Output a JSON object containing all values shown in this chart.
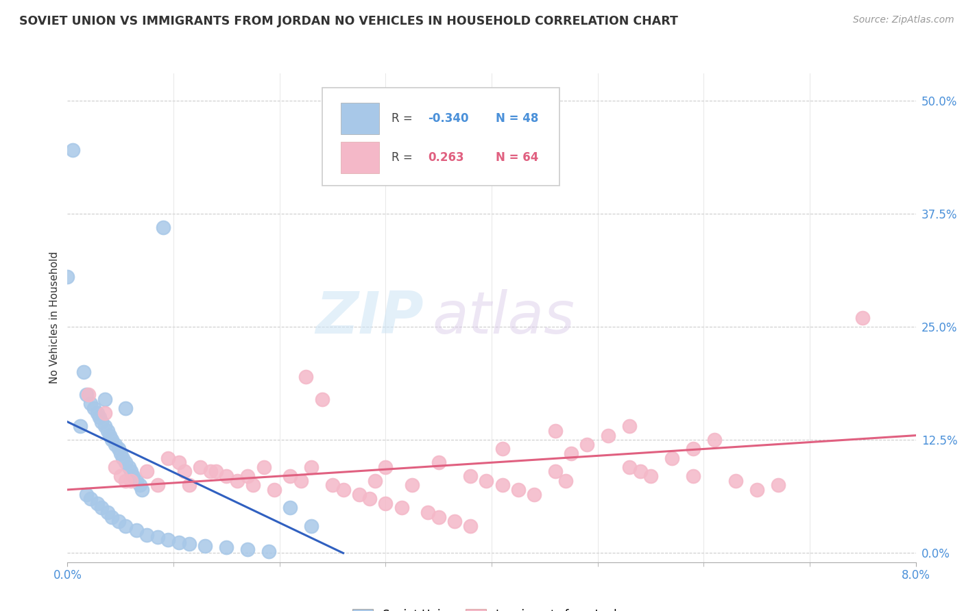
{
  "title": "SOVIET UNION VS IMMIGRANTS FROM JORDAN NO VEHICLES IN HOUSEHOLD CORRELATION CHART",
  "source": "Source: ZipAtlas.com",
  "ylabel": "No Vehicles in Household",
  "ytick_vals": [
    0.0,
    12.5,
    25.0,
    37.5,
    50.0
  ],
  "xlim": [
    0.0,
    8.0
  ],
  "ylim": [
    -1.0,
    53.0
  ],
  "color_blue": "#a8c8e8",
  "color_pink": "#f4b8c8",
  "color_blue_line": "#3060c0",
  "color_pink_line": "#e06080",
  "watermark_zip": "ZIP",
  "watermark_atlas": "atlas",
  "soviet_x": [
    0.05,
    0.9,
    0.0,
    0.15,
    0.18,
    0.22,
    0.25,
    0.28,
    0.3,
    0.32,
    0.35,
    0.38,
    0.4,
    0.42,
    0.45,
    0.48,
    0.5,
    0.52,
    0.55,
    0.58,
    0.6,
    0.62,
    0.65,
    0.68,
    0.7,
    0.18,
    0.22,
    0.28,
    0.32,
    0.38,
    0.42,
    0.48,
    0.55,
    0.65,
    0.75,
    0.85,
    0.95,
    1.05,
    1.15,
    1.3,
    1.5,
    1.7,
    1.9,
    2.1,
    2.3,
    0.12,
    0.35,
    0.55
  ],
  "soviet_y": [
    44.5,
    36.0,
    30.5,
    20.0,
    17.5,
    16.5,
    16.0,
    15.5,
    15.0,
    14.5,
    14.0,
    13.5,
    13.0,
    12.5,
    12.0,
    11.5,
    11.0,
    10.5,
    10.0,
    9.5,
    9.0,
    8.5,
    8.0,
    7.5,
    7.0,
    6.5,
    6.0,
    5.5,
    5.0,
    4.5,
    4.0,
    3.5,
    3.0,
    2.5,
    2.0,
    1.8,
    1.5,
    1.2,
    1.0,
    0.8,
    0.6,
    0.4,
    0.2,
    5.0,
    3.0,
    14.0,
    17.0,
    16.0
  ],
  "jordan_x": [
    0.2,
    0.35,
    0.45,
    0.5,
    0.6,
    0.75,
    0.85,
    0.95,
    1.05,
    1.15,
    1.25,
    1.35,
    1.5,
    1.6,
    1.75,
    1.85,
    1.95,
    2.1,
    2.25,
    2.4,
    2.5,
    2.6,
    2.75,
    2.85,
    3.0,
    3.15,
    3.25,
    3.4,
    3.5,
    3.65,
    3.8,
    3.95,
    4.1,
    4.25,
    4.4,
    4.6,
    4.75,
    4.9,
    5.1,
    5.3,
    5.5,
    5.7,
    5.9,
    6.1,
    6.3,
    6.5,
    6.7,
    7.5,
    0.55,
    1.1,
    1.7,
    2.3,
    2.9,
    3.5,
    4.1,
    4.7,
    5.3,
    5.9,
    1.4,
    2.2,
    3.0,
    3.8,
    4.6,
    5.4
  ],
  "jordan_y": [
    17.5,
    15.5,
    9.5,
    8.5,
    8.0,
    9.0,
    7.5,
    10.5,
    10.0,
    7.5,
    9.5,
    9.0,
    8.5,
    8.0,
    7.5,
    9.5,
    7.0,
    8.5,
    19.5,
    17.0,
    7.5,
    7.0,
    6.5,
    6.0,
    5.5,
    5.0,
    7.5,
    4.5,
    4.0,
    3.5,
    3.0,
    8.0,
    7.5,
    7.0,
    6.5,
    9.0,
    11.0,
    12.0,
    13.0,
    9.5,
    8.5,
    10.5,
    11.5,
    12.5,
    8.0,
    7.0,
    7.5,
    26.0,
    8.0,
    9.0,
    8.5,
    9.5,
    8.0,
    10.0,
    11.5,
    8.0,
    14.0,
    8.5,
    9.0,
    8.0,
    9.5,
    8.5,
    13.5,
    9.0
  ]
}
